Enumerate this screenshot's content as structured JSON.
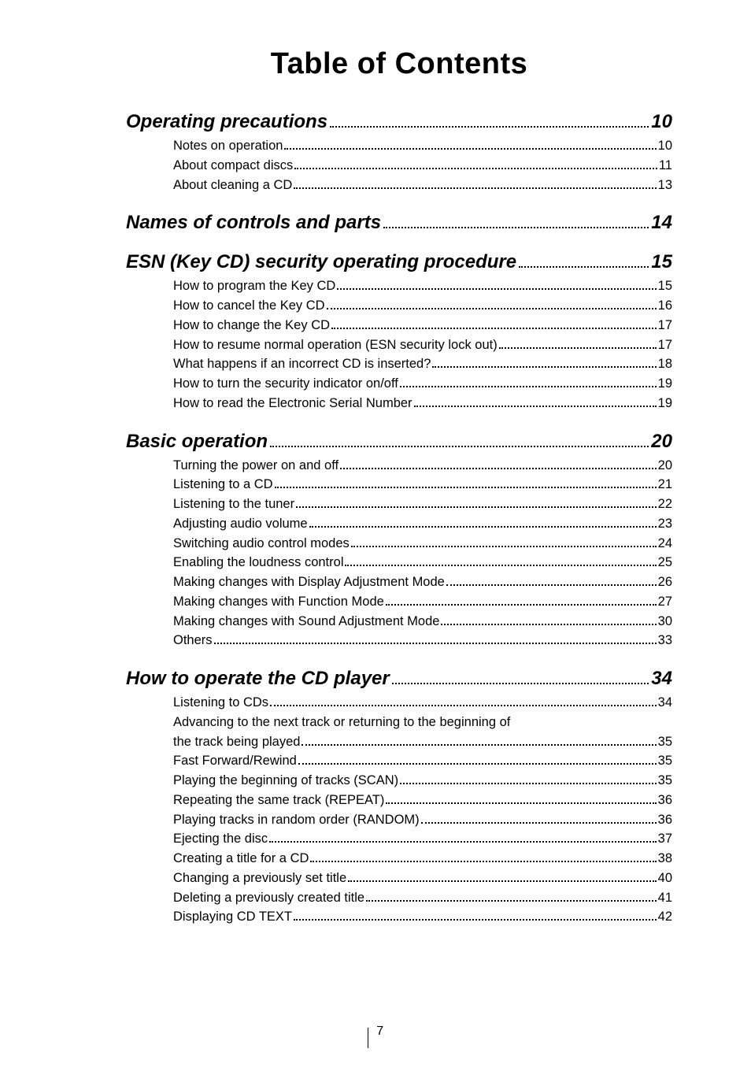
{
  "title": "Table of Contents",
  "page_number": "7",
  "sections": [
    {
      "label": "Operating precautions",
      "page": "10",
      "entries": [
        {
          "label": "Notes on operation",
          "page": "10"
        },
        {
          "label": "About compact discs",
          "page": "11"
        },
        {
          "label": "About cleaning a CD",
          "page": "13"
        }
      ]
    },
    {
      "label": "Names of controls and parts",
      "page": "14",
      "entries": []
    },
    {
      "label": "ESN (Key CD) security operating procedure",
      "page": "15",
      "entries": [
        {
          "label": "How to program the Key CD",
          "page": "15"
        },
        {
          "label": "How to cancel the Key CD",
          "page": "16"
        },
        {
          "label": "How to change the Key CD",
          "page": "17"
        },
        {
          "label": "How to resume normal operation (ESN security lock out)",
          "page": "17"
        },
        {
          "label": "What happens if an incorrect CD is inserted?",
          "page": "18"
        },
        {
          "label": "How to turn the security indicator on/off",
          "page": "19"
        },
        {
          "label": "How to read the Electronic Serial Number",
          "page": "19"
        }
      ]
    },
    {
      "label": "Basic operation",
      "page": "20",
      "entries": [
        {
          "label": "Turning the power on and off",
          "page": "20"
        },
        {
          "label": "Listening to a CD",
          "page": "21"
        },
        {
          "label": "Listening to the tuner",
          "page": "22"
        },
        {
          "label": "Adjusting audio volume",
          "page": "23"
        },
        {
          "label": "Switching audio control modes",
          "page": "24"
        },
        {
          "label": "Enabling the loudness control",
          "page": "25"
        },
        {
          "label": "Making changes with Display Adjustment Mode",
          "page": "26"
        },
        {
          "label": "Making changes with Function Mode",
          "page": "27"
        },
        {
          "label": "Making changes with Sound Adjustment Mode",
          "page": "30"
        },
        {
          "label": "Others",
          "page": "33"
        }
      ]
    },
    {
      "label": "How to operate the CD player",
      "page": "34",
      "entries": [
        {
          "label": "Listening to CDs",
          "page": "34"
        },
        {
          "label": "Advancing to the next track or returning to the beginning of",
          "noleader": true
        },
        {
          "label": "the track being played",
          "page": "35"
        },
        {
          "label": "Fast Forward/Rewind",
          "page": "35"
        },
        {
          "label": "Playing the beginning of tracks (SCAN)",
          "page": "35"
        },
        {
          "label": "Repeating the same track (REPEAT)",
          "page": "36"
        },
        {
          "label": "Playing tracks in random order (RANDOM)",
          "page": "36"
        },
        {
          "label": "Ejecting the disc",
          "page": "37"
        },
        {
          "label": "Creating a title for a CD",
          "page": "38"
        },
        {
          "label": "Changing a previously set title",
          "page": "40"
        },
        {
          "label": "Deleting a previously created title",
          "page": "41"
        },
        {
          "label": "Displaying CD TEXT",
          "page": "42"
        }
      ]
    }
  ]
}
